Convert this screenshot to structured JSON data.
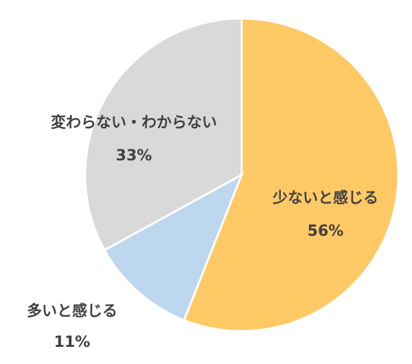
{
  "chart_data": {
    "type": "pie",
    "categories": [
      "少ないと感じる",
      "多いと感じる",
      "変わらない・わからない"
    ],
    "values": [
      56,
      11,
      33
    ],
    "value_labels": [
      "56%",
      "11%",
      "33%"
    ],
    "colors": [
      "#FFC966",
      "#BDD7EE",
      "#D9D9D9"
    ]
  }
}
